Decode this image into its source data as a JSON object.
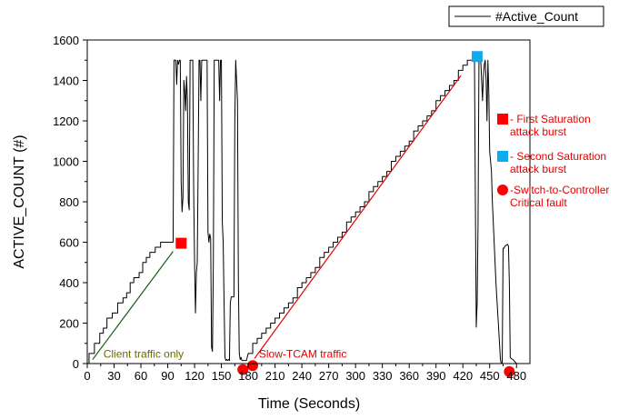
{
  "chart_data": {
    "type": "line",
    "title": "",
    "xlabel": "Time (Seconds)",
    "ylabel": "ACTIVE_COUNT (#)",
    "xlim": [
      0,
      495
    ],
    "ylim": [
      0,
      1600
    ],
    "xticks": [
      0,
      30,
      60,
      90,
      120,
      150,
      180,
      210,
      240,
      270,
      300,
      330,
      360,
      390,
      420,
      450,
      480
    ],
    "yticks": [
      0,
      200,
      400,
      600,
      800,
      1000,
      1200,
      1400,
      1600
    ],
    "grid": false,
    "legend": {
      "position": "top-right",
      "entries": [
        "#Active_Count"
      ]
    },
    "series": [
      {
        "name": "#Active_Count",
        "color": "#000000",
        "points": [
          [
            0,
            0
          ],
          [
            2,
            0
          ],
          [
            2,
            50
          ],
          [
            8,
            50
          ],
          [
            8,
            100
          ],
          [
            14,
            100
          ],
          [
            14,
            150
          ],
          [
            18,
            150
          ],
          [
            18,
            175
          ],
          [
            22,
            175
          ],
          [
            22,
            225
          ],
          [
            28,
            225
          ],
          [
            28,
            250
          ],
          [
            34,
            250
          ],
          [
            34,
            300
          ],
          [
            40,
            300
          ],
          [
            40,
            325
          ],
          [
            44,
            325
          ],
          [
            44,
            350
          ],
          [
            48,
            350
          ],
          [
            48,
            400
          ],
          [
            52,
            400
          ],
          [
            52,
            425
          ],
          [
            58,
            425
          ],
          [
            58,
            450
          ],
          [
            62,
            450
          ],
          [
            62,
            500
          ],
          [
            66,
            500
          ],
          [
            66,
            525
          ],
          [
            70,
            525
          ],
          [
            70,
            550
          ],
          [
            76,
            550
          ],
          [
            76,
            575
          ],
          [
            82,
            575
          ],
          [
            82,
            600
          ],
          [
            96,
            600
          ],
          [
            97,
            1500
          ],
          [
            99,
            1500
          ],
          [
            100,
            1380
          ],
          [
            101,
            1500
          ],
          [
            102,
            1480
          ],
          [
            103,
            1500
          ],
          [
            104,
            1500
          ],
          [
            105,
            900
          ],
          [
            106,
            750
          ],
          [
            107,
            820
          ],
          [
            108,
            1400
          ],
          [
            109,
            1350
          ],
          [
            110,
            1250
          ],
          [
            111,
            1420
          ],
          [
            112,
            1300
          ],
          [
            113,
            800
          ],
          [
            114,
            760
          ],
          [
            115,
            1500
          ],
          [
            118,
            1500
          ],
          [
            119,
            850
          ],
          [
            120,
            500
          ],
          [
            121,
            250
          ],
          [
            122,
            450
          ],
          [
            123,
            500
          ],
          [
            124,
            980
          ],
          [
            125,
            1500
          ],
          [
            126,
            1500
          ],
          [
            127,
            1300
          ],
          [
            128,
            1500
          ],
          [
            133,
            1500
          ],
          [
            134,
            1500
          ],
          [
            135,
            650
          ],
          [
            136,
            600
          ],
          [
            137,
            640
          ],
          [
            138,
            620
          ],
          [
            139,
            80
          ],
          [
            140,
            60
          ],
          [
            141,
            500
          ],
          [
            142,
            1500
          ],
          [
            143,
            1500
          ],
          [
            147,
            1500
          ],
          [
            148,
            1300
          ],
          [
            149,
            1500
          ],
          [
            150,
            1500
          ],
          [
            151,
            700
          ],
          [
            152,
            600
          ],
          [
            153,
            300
          ],
          [
            154,
            30
          ],
          [
            155,
            15
          ],
          [
            156,
            20
          ],
          [
            157,
            15
          ],
          [
            158,
            20
          ],
          [
            159,
            15
          ],
          [
            160,
            300
          ],
          [
            161,
            330
          ],
          [
            164,
            330
          ],
          [
            165,
            1200
          ],
          [
            166,
            1500
          ],
          [
            167,
            1400
          ],
          [
            168,
            1300
          ],
          [
            169,
            400
          ],
          [
            170,
            50
          ],
          [
            171,
            20
          ],
          [
            172,
            30
          ],
          [
            173,
            15
          ],
          [
            178,
            15
          ],
          [
            180,
            50
          ],
          [
            185,
            50
          ],
          [
            185,
            100
          ],
          [
            190,
            100
          ],
          [
            190,
            125
          ],
          [
            195,
            125
          ],
          [
            195,
            150
          ],
          [
            200,
            150
          ],
          [
            200,
            175
          ],
          [
            205,
            175
          ],
          [
            205,
            200
          ],
          [
            210,
            200
          ],
          [
            210,
            225
          ],
          [
            215,
            225
          ],
          [
            215,
            250
          ],
          [
            220,
            250
          ],
          [
            220,
            275
          ],
          [
            225,
            275
          ],
          [
            225,
            300
          ],
          [
            230,
            300
          ],
          [
            230,
            325
          ],
          [
            235,
            325
          ],
          [
            235,
            375
          ],
          [
            240,
            375
          ],
          [
            240,
            400
          ],
          [
            245,
            400
          ],
          [
            245,
            425
          ],
          [
            250,
            425
          ],
          [
            250,
            450
          ],
          [
            255,
            450
          ],
          [
            255,
            475
          ],
          [
            260,
            475
          ],
          [
            260,
            525
          ],
          [
            265,
            525
          ],
          [
            265,
            550
          ],
          [
            270,
            550
          ],
          [
            270,
            575
          ],
          [
            275,
            575
          ],
          [
            275,
            600
          ],
          [
            280,
            600
          ],
          [
            280,
            625
          ],
          [
            285,
            625
          ],
          [
            285,
            650
          ],
          [
            290,
            650
          ],
          [
            290,
            700
          ],
          [
            295,
            700
          ],
          [
            295,
            725
          ],
          [
            300,
            725
          ],
          [
            300,
            750
          ],
          [
            305,
            750
          ],
          [
            305,
            775
          ],
          [
            310,
            775
          ],
          [
            310,
            800
          ],
          [
            315,
            800
          ],
          [
            315,
            850
          ],
          [
            320,
            850
          ],
          [
            320,
            875
          ],
          [
            325,
            875
          ],
          [
            325,
            900
          ],
          [
            330,
            900
          ],
          [
            330,
            925
          ],
          [
            335,
            925
          ],
          [
            335,
            950
          ],
          [
            340,
            950
          ],
          [
            340,
            1000
          ],
          [
            345,
            1000
          ],
          [
            345,
            1025
          ],
          [
            350,
            1025
          ],
          [
            350,
            1050
          ],
          [
            355,
            1050
          ],
          [
            355,
            1075
          ],
          [
            360,
            1075
          ],
          [
            360,
            1100
          ],
          [
            365,
            1100
          ],
          [
            365,
            1150
          ],
          [
            370,
            1150
          ],
          [
            370,
            1175
          ],
          [
            375,
            1175
          ],
          [
            375,
            1200
          ],
          [
            380,
            1200
          ],
          [
            380,
            1225
          ],
          [
            385,
            1225
          ],
          [
            385,
            1250
          ],
          [
            390,
            1250
          ],
          [
            390,
            1300
          ],
          [
            395,
            1300
          ],
          [
            395,
            1325
          ],
          [
            400,
            1325
          ],
          [
            400,
            1350
          ],
          [
            405,
            1350
          ],
          [
            405,
            1375
          ],
          [
            410,
            1375
          ],
          [
            410,
            1400
          ],
          [
            415,
            1400
          ],
          [
            415,
            1450
          ],
          [
            420,
            1450
          ],
          [
            420,
            1475
          ],
          [
            425,
            1475
          ],
          [
            425,
            1500
          ],
          [
            433,
            1500
          ],
          [
            434,
            800
          ],
          [
            435,
            180
          ],
          [
            436,
            300
          ],
          [
            437,
            700
          ],
          [
            438,
            1500
          ],
          [
            440,
            1500
          ],
          [
            441,
            1400
          ],
          [
            442,
            1300
          ],
          [
            443,
            1420
          ],
          [
            444,
            1480
          ],
          [
            445,
            1500
          ],
          [
            446,
            1400
          ],
          [
            447,
            1200
          ],
          [
            448,
            1500
          ],
          [
            449,
            1350
          ],
          [
            450,
            1050
          ],
          [
            451,
            1000
          ],
          [
            452,
            950
          ],
          [
            453,
            800
          ],
          [
            455,
            600
          ],
          [
            457,
            400
          ],
          [
            459,
            250
          ],
          [
            461,
            100
          ],
          [
            462,
            20
          ],
          [
            463,
            0
          ],
          [
            464,
            0
          ],
          [
            465,
            570
          ],
          [
            466,
            570
          ],
          [
            467,
            580
          ],
          [
            470,
            590
          ],
          [
            471,
            580
          ],
          [
            472,
            400
          ],
          [
            473,
            30
          ],
          [
            474,
            25
          ],
          [
            476,
            20
          ],
          [
            478,
            10
          ],
          [
            480,
            0
          ]
        ]
      }
    ],
    "annotations": [
      {
        "text": "Client traffic only",
        "x": 18,
        "y": 30,
        "color": "#6b6b00"
      },
      {
        "text": "Slow-TCAM traffic",
        "x": 192,
        "y": 30,
        "color": "#e00000"
      }
    ],
    "trend_lines": [
      {
        "from": [
          6,
          20
        ],
        "to": [
          96,
          555
        ],
        "color": "#1a5e1a"
      },
      {
        "from": [
          187,
          25
        ],
        "to": [
          418,
          1425
        ],
        "color": "#e00000"
      }
    ],
    "markers": [
      {
        "shape": "square",
        "color": "#ff0000",
        "x": 105,
        "y": 595
      },
      {
        "shape": "square",
        "color": "#11aaee",
        "x": 436,
        "y": 1518
      },
      {
        "shape": "circle",
        "color": "#ff0000",
        "x": 174,
        "y": -30
      },
      {
        "shape": "circle",
        "color": "#ff0000",
        "x": 185,
        "y": -10
      },
      {
        "shape": "circle",
        "color": "#ff0000",
        "x": 472,
        "y": -40
      }
    ],
    "marker_legend": [
      {
        "shape": "square",
        "color": "#ff0000",
        "lines": [
          "- First Saturation",
          "attack burst"
        ]
      },
      {
        "shape": "square",
        "color": "#11aaee",
        "lines": [
          "- Second Saturation",
          "attack burst"
        ]
      },
      {
        "shape": "circle",
        "color": "#ff0000",
        "lines": [
          "-Switch-to-Controller",
          "Critical fault"
        ]
      }
    ]
  }
}
